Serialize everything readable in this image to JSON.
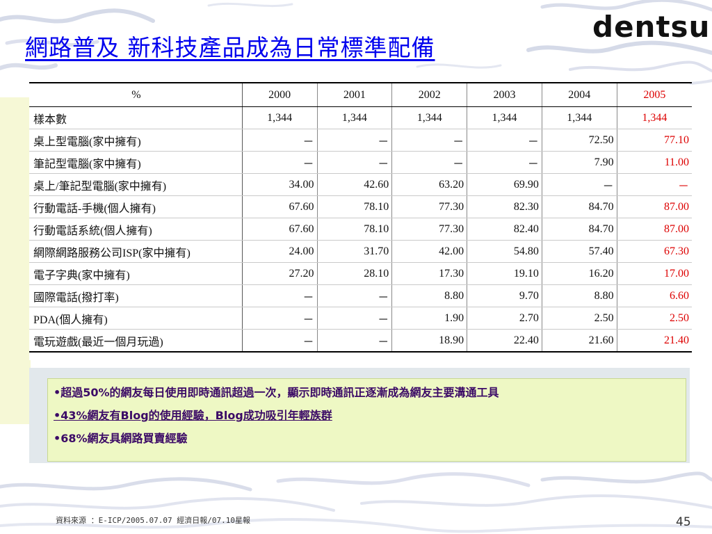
{
  "slide": {
    "title": "網路普及  新科技產品成為日常標準配備",
    "logo": "dentsu",
    "page_number": "45",
    "source": "資料來源 ：E-ICP/2005.07.07 經濟日報/07.10星報"
  },
  "table": {
    "corner": "%",
    "years": [
      "2000",
      "2001",
      "2002",
      "2003",
      "2004",
      "2005"
    ],
    "rows": [
      {
        "label": "樣本數",
        "values": [
          "1,344",
          "1,344",
          "1,344",
          "1,344",
          "1,344",
          "1,344"
        ]
      },
      {
        "label": "桌上型電腦(家中擁有)",
        "values": [
          "－",
          "－",
          "－",
          "－",
          "72.50",
          "77.10"
        ]
      },
      {
        "label": "筆記型電腦(家中擁有)",
        "values": [
          "－",
          "－",
          "－",
          "－",
          "7.90",
          "11.00"
        ]
      },
      {
        "label": "桌上/筆記型電腦(家中擁有)",
        "values": [
          "34.00",
          "42.60",
          "63.20",
          "69.90",
          "－",
          "－"
        ]
      },
      {
        "label": "行動電話-手機(個人擁有)",
        "values": [
          "67.60",
          "78.10",
          "77.30",
          "82.30",
          "84.70",
          "87.00"
        ]
      },
      {
        "label": "行動電話系統(個人擁有)",
        "values": [
          "67.60",
          "78.10",
          "77.30",
          "82.40",
          "84.70",
          "87.00"
        ]
      },
      {
        "label": "網際網路服務公司ISP(家中擁有)",
        "values": [
          "24.00",
          "31.70",
          "42.00",
          "54.80",
          "57.40",
          "67.30"
        ]
      },
      {
        "label": "電子字典(家中擁有)",
        "values": [
          "27.20",
          "28.10",
          "17.30",
          "19.10",
          "16.20",
          "17.00"
        ]
      },
      {
        "label": "國際電話(撥打率)",
        "values": [
          "－",
          "－",
          "8.80",
          "9.70",
          "8.80",
          "6.60"
        ]
      },
      {
        "label": "PDA(個人擁有)",
        "values": [
          "－",
          "－",
          "1.90",
          "2.70",
          "2.50",
          "2.50"
        ]
      },
      {
        "label": "電玩遊戲(最近一個月玩過)",
        "values": [
          "－",
          "－",
          "18.90",
          "22.40",
          "21.60",
          "21.40"
        ]
      }
    ]
  },
  "notes": {
    "bullet": "•",
    "items": [
      "超過50%的網友每日使用即時通訊超過一次，顯示即時通訊正逐漸成為網友主要溝通工具",
      "43%網友有Blog的使用經驗，Blog成功吸引年輕族群",
      "68%網友具網路買賣經驗"
    ]
  },
  "colors": {
    "title": "#0000ee",
    "highlight": "#dd0000",
    "notes_bg": "#eef8c4",
    "notes_text": "#3b0a66"
  }
}
